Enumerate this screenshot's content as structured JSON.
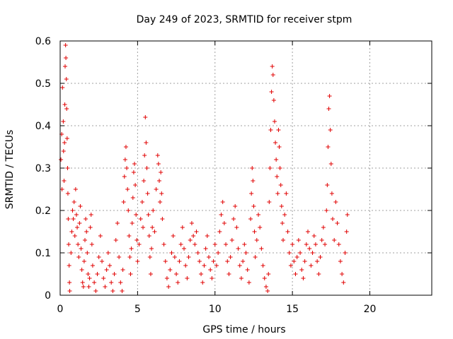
{
  "chart_data": {
    "type": "scatter",
    "title": "Day 249 of 2023, SRMTID for receiver stpm",
    "xlabel": "GPS time / hours",
    "ylabel": "SRMTID / TECUs",
    "xlim": [
      0,
      24
    ],
    "ylim": [
      0,
      0.6
    ],
    "xticks": [
      0,
      5,
      10,
      15,
      20
    ],
    "yticks": [
      0,
      0.1,
      0.2,
      0.3,
      0.4,
      0.5,
      0.6
    ],
    "xtick_labels": [
      "0",
      "5",
      "10",
      "15",
      "20"
    ],
    "ytick_labels": [
      "0",
      "0.1",
      "0.2",
      "0.3",
      "0.4",
      "0.5",
      "0.6"
    ],
    "grid": true,
    "marker": "+",
    "color": "#e00000",
    "series": [
      {
        "name": "SRMTID",
        "points": [
          [
            0.05,
            0.32
          ],
          [
            0.1,
            0.38
          ],
          [
            0.12,
            0.25
          ],
          [
            0.15,
            0.49
          ],
          [
            0.2,
            0.41
          ],
          [
            0.22,
            0.34
          ],
          [
            0.25,
            0.27
          ],
          [
            0.28,
            0.36
          ],
          [
            0.3,
            0.45
          ],
          [
            0.32,
            0.54
          ],
          [
            0.35,
            0.59
          ],
          [
            0.37,
            0.56
          ],
          [
            0.4,
            0.51
          ],
          [
            0.42,
            0.44
          ],
          [
            0.45,
            0.37
          ],
          [
            0.48,
            0.3
          ],
          [
            0.5,
            0.24
          ],
          [
            0.52,
            0.18
          ],
          [
            0.55,
            0.12
          ],
          [
            0.58,
            0.07
          ],
          [
            0.6,
            0.03
          ],
          [
            0.62,
            0.01
          ],
          [
            0.7,
            0.1
          ],
          [
            0.75,
            0.15
          ],
          [
            0.8,
            0.2
          ],
          [
            0.85,
            0.18
          ],
          [
            0.9,
            0.22
          ],
          [
            0.95,
            0.14
          ],
          [
            1.0,
            0.25
          ],
          [
            1.05,
            0.19
          ],
          [
            1.1,
            0.16
          ],
          [
            1.15,
            0.12
          ],
          [
            1.2,
            0.09
          ],
          [
            1.25,
            0.17
          ],
          [
            1.3,
            0.21
          ],
          [
            1.35,
            0.11
          ],
          [
            1.4,
            0.06
          ],
          [
            1.45,
            0.03
          ],
          [
            1.5,
            0.02
          ],
          [
            1.55,
            0.08
          ],
          [
            1.6,
            0.13
          ],
          [
            1.65,
            0.18
          ],
          [
            1.7,
            0.15
          ],
          [
            1.75,
            0.1
          ],
          [
            1.8,
            0.05
          ],
          [
            1.85,
            0.02
          ],
          [
            1.9,
            0.04
          ],
          [
            1.95,
            0.16
          ],
          [
            2.0,
            0.19
          ],
          [
            2.05,
            0.12
          ],
          [
            2.1,
            0.07
          ],
          [
            2.2,
            0.03
          ],
          [
            2.3,
            0.01
          ],
          [
            2.4,
            0.05
          ],
          [
            2.5,
            0.09
          ],
          [
            2.6,
            0.14
          ],
          [
            2.7,
            0.08
          ],
          [
            2.8,
            0.04
          ],
          [
            2.9,
            0.02
          ],
          [
            3.0,
            0.06
          ],
          [
            3.1,
            0.1
          ],
          [
            3.2,
            0.07
          ],
          [
            3.3,
            0.03
          ],
          [
            3.4,
            0.01
          ],
          [
            3.5,
            0.05
          ],
          [
            3.6,
            0.13
          ],
          [
            3.7,
            0.17
          ],
          [
            3.8,
            0.09
          ],
          [
            3.9,
            0.03
          ],
          [
            4.0,
            0.01
          ],
          [
            4.05,
            0.06
          ],
          [
            4.1,
            0.22
          ],
          [
            4.15,
            0.28
          ],
          [
            4.2,
            0.32
          ],
          [
            4.25,
            0.35
          ],
          [
            4.3,
            0.3
          ],
          [
            4.35,
            0.25
          ],
          [
            4.4,
            0.2
          ],
          [
            4.45,
            0.14
          ],
          [
            4.5,
            0.09
          ],
          [
            4.55,
            0.05
          ],
          [
            4.6,
            0.11
          ],
          [
            4.65,
            0.17
          ],
          [
            4.7,
            0.23
          ],
          [
            4.75,
            0.29
          ],
          [
            4.8,
            0.31
          ],
          [
            4.85,
            0.26
          ],
          [
            4.9,
            0.19
          ],
          [
            4.95,
            0.13
          ],
          [
            5.0,
            0.08
          ],
          [
            5.1,
            0.12
          ],
          [
            5.2,
            0.18
          ],
          [
            5.3,
            0.22
          ],
          [
            5.35,
            0.16
          ],
          [
            5.4,
            0.27
          ],
          [
            5.45,
            0.33
          ],
          [
            5.5,
            0.42
          ],
          [
            5.55,
            0.36
          ],
          [
            5.6,
            0.3
          ],
          [
            5.65,
            0.24
          ],
          [
            5.7,
            0.19
          ],
          [
            5.75,
            0.14
          ],
          [
            5.8,
            0.09
          ],
          [
            5.85,
            0.05
          ],
          [
            5.9,
            0.11
          ],
          [
            5.95,
            0.16
          ],
          [
            6.0,
            0.2
          ],
          [
            6.1,
            0.15
          ],
          [
            6.2,
            0.25
          ],
          [
            6.3,
            0.33
          ],
          [
            6.35,
            0.31
          ],
          [
            6.4,
            0.27
          ],
          [
            6.45,
            0.22
          ],
          [
            6.5,
            0.29
          ],
          [
            6.55,
            0.24
          ],
          [
            6.6,
            0.18
          ],
          [
            6.7,
            0.12
          ],
          [
            6.8,
            0.08
          ],
          [
            6.9,
            0.04
          ],
          [
            7.0,
            0.02
          ],
          [
            7.1,
            0.06
          ],
          [
            7.2,
            0.1
          ],
          [
            7.3,
            0.14
          ],
          [
            7.4,
            0.09
          ],
          [
            7.5,
            0.05
          ],
          [
            7.6,
            0.03
          ],
          [
            7.7,
            0.08
          ],
          [
            7.8,
            0.12
          ],
          [
            7.9,
            0.16
          ],
          [
            8.0,
            0.11
          ],
          [
            8.1,
            0.07
          ],
          [
            8.2,
            0.04
          ],
          [
            8.3,
            0.09
          ],
          [
            8.4,
            0.13
          ],
          [
            8.5,
            0.17
          ],
          [
            8.6,
            0.14
          ],
          [
            8.7,
            0.12
          ],
          [
            8.8,
            0.15
          ],
          [
            8.9,
            0.1
          ],
          [
            9.0,
            0.08
          ],
          [
            9.1,
            0.05
          ],
          [
            9.2,
            0.03
          ],
          [
            9.3,
            0.07
          ],
          [
            9.4,
            0.11
          ],
          [
            9.5,
            0.14
          ],
          [
            9.6,
            0.09
          ],
          [
            9.7,
            0.06
          ],
          [
            9.8,
            0.04
          ],
          [
            9.9,
            0.08
          ],
          [
            10.0,
            0.12
          ],
          [
            10.1,
            0.07
          ],
          [
            10.2,
            0.1
          ],
          [
            10.3,
            0.15
          ],
          [
            10.4,
            0.19
          ],
          [
            10.5,
            0.22
          ],
          [
            10.6,
            0.17
          ],
          [
            10.7,
            0.12
          ],
          [
            10.8,
            0.08
          ],
          [
            10.9,
            0.05
          ],
          [
            11.0,
            0.09
          ],
          [
            11.1,
            0.13
          ],
          [
            11.2,
            0.18
          ],
          [
            11.3,
            0.21
          ],
          [
            11.4,
            0.16
          ],
          [
            11.5,
            0.11
          ],
          [
            11.6,
            0.07
          ],
          [
            11.7,
            0.04
          ],
          [
            11.8,
            0.08
          ],
          [
            11.9,
            0.12
          ],
          [
            12.0,
            0.1
          ],
          [
            12.1,
            0.06
          ],
          [
            12.2,
            0.03
          ],
          [
            12.3,
            0.18
          ],
          [
            12.35,
            0.24
          ],
          [
            12.4,
            0.3
          ],
          [
            12.45,
            0.27
          ],
          [
            12.5,
            0.21
          ],
          [
            12.55,
            0.15
          ],
          [
            12.6,
            0.09
          ],
          [
            12.7,
            0.13
          ],
          [
            12.8,
            0.19
          ],
          [
            12.9,
            0.16
          ],
          [
            13.0,
            0.11
          ],
          [
            13.1,
            0.07
          ],
          [
            13.2,
            0.04
          ],
          [
            13.3,
            0.02
          ],
          [
            13.4,
            0.01
          ],
          [
            13.45,
            0.05
          ],
          [
            13.5,
            0.22
          ],
          [
            13.55,
            0.3
          ],
          [
            13.6,
            0.39
          ],
          [
            13.65,
            0.48
          ],
          [
            13.7,
            0.54
          ],
          [
            13.75,
            0.52
          ],
          [
            13.8,
            0.46
          ],
          [
            13.85,
            0.41
          ],
          [
            13.9,
            0.36
          ],
          [
            13.95,
            0.32
          ],
          [
            14.0,
            0.28
          ],
          [
            14.05,
            0.24
          ],
          [
            14.1,
            0.39
          ],
          [
            14.15,
            0.35
          ],
          [
            14.2,
            0.3
          ],
          [
            14.25,
            0.26
          ],
          [
            14.3,
            0.21
          ],
          [
            14.35,
            0.17
          ],
          [
            14.4,
            0.13
          ],
          [
            14.5,
            0.19
          ],
          [
            14.6,
            0.24
          ],
          [
            14.7,
            0.15
          ],
          [
            14.8,
            0.1
          ],
          [
            14.9,
            0.07
          ],
          [
            15.0,
            0.12
          ],
          [
            15.1,
            0.08
          ],
          [
            15.2,
            0.05
          ],
          [
            15.3,
            0.09
          ],
          [
            15.4,
            0.13
          ],
          [
            15.5,
            0.1
          ],
          [
            15.6,
            0.06
          ],
          [
            15.7,
            0.04
          ],
          [
            15.8,
            0.08
          ],
          [
            15.9,
            0.12
          ],
          [
            16.0,
            0.15
          ],
          [
            16.1,
            0.11
          ],
          [
            16.2,
            0.07
          ],
          [
            16.3,
            0.1
          ],
          [
            16.4,
            0.14
          ],
          [
            16.5,
            0.12
          ],
          [
            16.6,
            0.08
          ],
          [
            16.7,
            0.05
          ],
          [
            16.8,
            0.09
          ],
          [
            16.9,
            0.13
          ],
          [
            17.0,
            0.16
          ],
          [
            17.1,
            0.12
          ],
          [
            17.2,
            0.2
          ],
          [
            17.25,
            0.26
          ],
          [
            17.3,
            0.35
          ],
          [
            17.35,
            0.44
          ],
          [
            17.4,
            0.47
          ],
          [
            17.45,
            0.39
          ],
          [
            17.5,
            0.31
          ],
          [
            17.55,
            0.24
          ],
          [
            17.6,
            0.18
          ],
          [
            17.7,
            0.13
          ],
          [
            17.8,
            0.22
          ],
          [
            17.9,
            0.17
          ],
          [
            18.0,
            0.12
          ],
          [
            18.1,
            0.08
          ],
          [
            18.2,
            0.05
          ],
          [
            18.3,
            0.03
          ],
          [
            18.4,
            0.1
          ],
          [
            18.5,
            0.15
          ],
          [
            18.55,
            0.19
          ]
        ]
      }
    ]
  }
}
